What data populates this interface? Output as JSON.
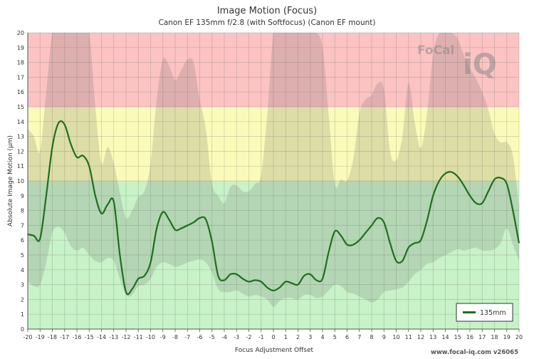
{
  "chart_data": {
    "type": "line",
    "title": "Image Motion (Focus)",
    "subtitle": "Canon EF 135mm f/2.8 (with Softfocus) (Canon EF mount)",
    "xlabel": "Focus Adjustment Offset",
    "ylabel": "Absolute Image Motion (µm)",
    "xlim": [
      -20,
      20
    ],
    "ylim": [
      0,
      20
    ],
    "xticks": [
      -20,
      -19,
      -18,
      -17,
      -16,
      -15,
      -14,
      -13,
      -12,
      -11,
      -10,
      -9,
      -8,
      -7,
      -6,
      -5,
      -4,
      -3,
      -2,
      -1,
      0,
      1,
      2,
      3,
      4,
      5,
      6,
      7,
      8,
      9,
      10,
      11,
      12,
      13,
      14,
      15,
      16,
      17,
      18,
      19,
      20
    ],
    "yticks": [
      0,
      1,
      2,
      3,
      4,
      5,
      6,
      7,
      8,
      9,
      10,
      11,
      12,
      13,
      14,
      15,
      16,
      17,
      18,
      19,
      20
    ],
    "grid": true,
    "legend_position": "bottom-right",
    "zones": [
      {
        "from": 0,
        "to": 10,
        "color": "#c8f2c8"
      },
      {
        "from": 10,
        "to": 15,
        "color": "#fbfbb9"
      },
      {
        "from": 15,
        "to": 20,
        "color": "#fcc3c3"
      }
    ],
    "series": [
      {
        "name": "135mm",
        "color": "#1f6e1f",
        "x": [
          -20,
          -19.5,
          -19,
          -18.5,
          -18,
          -17.5,
          -17,
          -16.5,
          -16,
          -15.5,
          -15,
          -14.5,
          -14,
          -13.5,
          -13,
          -12.5,
          -12,
          -11.5,
          -11,
          -10.5,
          -10,
          -9.5,
          -9,
          -8.5,
          -8,
          -7.5,
          -7,
          -6.5,
          -6,
          -5.5,
          -5,
          -4.5,
          -4,
          -3.5,
          -3,
          -2.5,
          -2,
          -1.5,
          -1,
          -0.5,
          0,
          0.5,
          1,
          1.5,
          2,
          2.5,
          3,
          3.5,
          4,
          4.5,
          5,
          5.5,
          6,
          6.5,
          7,
          7.5,
          8,
          8.5,
          9,
          9.5,
          10,
          10.5,
          11,
          11.5,
          12,
          12.5,
          13,
          13.5,
          14,
          14.5,
          15,
          15.5,
          16,
          16.5,
          17,
          17.5,
          18,
          18.5,
          19,
          19.5,
          20
        ],
        "values": [
          6.4,
          6.3,
          6.1,
          9,
          12.3,
          13.9,
          13.8,
          12.5,
          11.6,
          11.7,
          11,
          9,
          7.8,
          8.4,
          8.6,
          5,
          2.5,
          2.7,
          3.4,
          3.6,
          4.5,
          6.8,
          7.9,
          7.4,
          6.7,
          6.8,
          7,
          7.2,
          7.5,
          7.4,
          5.9,
          3.6,
          3.3,
          3.7,
          3.7,
          3.4,
          3.2,
          3.3,
          3.2,
          2.8,
          2.6,
          2.8,
          3.2,
          3.1,
          3,
          3.6,
          3.7,
          3.3,
          3.4,
          5.2,
          6.6,
          6.3,
          5.7,
          5.7,
          6,
          6.5,
          7,
          7.5,
          7.2,
          5.8,
          4.6,
          4.6,
          5.5,
          5.8,
          6,
          7.3,
          9,
          10,
          10.5,
          10.6,
          10.3,
          9.7,
          9,
          8.5,
          8.5,
          9.3,
          10.1,
          10.2,
          9.8,
          8,
          5.8
        ],
        "lower": [
          3.2,
          2.9,
          3,
          4.5,
          6.5,
          6.9,
          6.5,
          5.6,
          5.3,
          5.5,
          5,
          4.6,
          4.5,
          4.8,
          4.6,
          3.4,
          2.3,
          2.3,
          2.9,
          3,
          3.4,
          4.2,
          4.5,
          4.4,
          4.2,
          4.3,
          4.5,
          4.6,
          4.7,
          4.5,
          3.8,
          2.7,
          2.5,
          2.5,
          2.6,
          2.4,
          2.2,
          2.3,
          2.2,
          2,
          1.5,
          1.9,
          2.1,
          2.1,
          2,
          2.3,
          2.3,
          2.1,
          2.2,
          2.6,
          3,
          2.9,
          2.5,
          2.4,
          2.2,
          2,
          1.8,
          2,
          2.5,
          2.6,
          2.7,
          2.8,
          3.2,
          3.7,
          4,
          4.4,
          4.5,
          4.8,
          5,
          5.2,
          5.4,
          5.3,
          5.4,
          5.5,
          5.3,
          5.3,
          5.4,
          5.8,
          6.8,
          5.7,
          4.6
        ],
        "upper": [
          13.5,
          13,
          12,
          16,
          20.2,
          20.5,
          20.3,
          20.2,
          20.3,
          20.4,
          20.2,
          15,
          11.2,
          12.3,
          11.2,
          9.2,
          7.5,
          8,
          8.9,
          9.3,
          11.2,
          15.5,
          18.2,
          17.8,
          16.8,
          17.5,
          18.2,
          18,
          15.5,
          13.5,
          9.8,
          9,
          8.5,
          9.6,
          9.7,
          9.3,
          9.3,
          9.8,
          10.4,
          14.5,
          20.3,
          20.3,
          20.2,
          20.3,
          20.2,
          20.2,
          20.1,
          20.1,
          19,
          14.5,
          9.8,
          10.1,
          10,
          11.5,
          14.6,
          15.5,
          15.8,
          16.6,
          16.2,
          12,
          11.4,
          13,
          16.6,
          14,
          12.2,
          14.5,
          18.5,
          20.3,
          20.3,
          20.3,
          19.6,
          18.5,
          17.6,
          16.9,
          16,
          14.8,
          13.2,
          12.6,
          12.6,
          11.7,
          8.2
        ]
      }
    ]
  },
  "watermark": "www.focal-iq.com  v26065",
  "logo": "FoCal iQ"
}
